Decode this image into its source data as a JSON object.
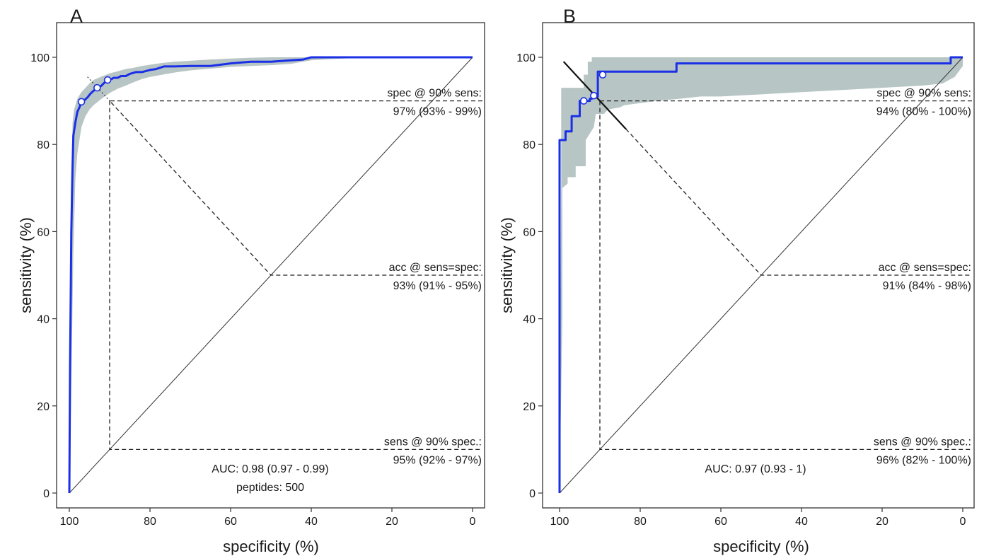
{
  "chart_data": [
    {
      "panel": "A",
      "type": "line",
      "xlabel": "specificity (%)",
      "ylabel": "sensitivity (%)",
      "xlim": [
        100,
        0
      ],
      "ylim": [
        0,
        100
      ],
      "x_reversed": true,
      "xticks": [
        "100",
        "80",
        "60",
        "40",
        "20",
        "0"
      ],
      "yticks": [
        "0",
        "20",
        "40",
        "60",
        "80",
        "100"
      ],
      "grid": false,
      "series": [
        {
          "role": "roc-curve",
          "x": [
            100,
            99.8,
            99.5,
            99.2,
            99,
            98.5,
            98,
            97.5,
            97,
            96.2,
            95.5,
            94.8,
            94,
            93.2,
            92.5,
            92,
            91.5,
            91,
            90.5,
            90,
            89.5,
            89,
            88,
            87.2,
            86,
            85,
            83.5,
            82,
            80,
            78.5,
            76.5,
            74,
            70,
            65,
            60,
            55,
            50,
            45,
            42,
            40,
            35,
            30,
            20,
            10,
            0
          ],
          "y": [
            0,
            30,
            60,
            75,
            82,
            85,
            87.5,
            88.5,
            89.7,
            90.2,
            90.8,
            91.6,
            92.3,
            92.9,
            93.2,
            93.5,
            94,
            94.4,
            94.7,
            95,
            95,
            95.3,
            95.3,
            95.7,
            95.7,
            96.2,
            96.6,
            96.6,
            97.1,
            97.3,
            97.9,
            97.9,
            98,
            98,
            98.6,
            99,
            99,
            99.3,
            99.5,
            100,
            100,
            100,
            100,
            100,
            100
          ]
        },
        {
          "role": "ci-upper",
          "x": [
            100,
            99.6,
            99.2,
            98.8,
            98,
            97,
            96,
            95,
            94,
            92,
            90,
            88,
            86,
            84,
            82,
            80,
            77,
            74,
            70,
            65,
            60,
            55,
            50,
            45,
            42,
            40,
            35,
            30,
            20,
            10,
            0
          ],
          "y": [
            10,
            70,
            85,
            88,
            90.5,
            92,
            93,
            94,
            94.8,
            95.6,
            96.3,
            96.8,
            97.3,
            97.6,
            98,
            98.3,
            98.7,
            99,
            99.2,
            99.5,
            99.7,
            99.9,
            100,
            100,
            100,
            100,
            100,
            100,
            100,
            100,
            100
          ]
        },
        {
          "role": "ci-lower",
          "x": [
            100,
            99.6,
            99,
            98.5,
            98,
            97,
            96,
            95,
            94,
            92,
            90,
            88,
            86,
            84,
            82,
            80,
            77,
            74,
            70,
            65,
            60,
            55,
            50,
            45,
            42,
            40,
            35,
            30,
            20,
            10,
            0
          ],
          "y": [
            0,
            20,
            55,
            72,
            78,
            84,
            86.5,
            88,
            89,
            90.5,
            91.8,
            92.8,
            93.5,
            94.3,
            95,
            95.5,
            96,
            96.5,
            97,
            97.4,
            97.8,
            98,
            98.2,
            98.5,
            99,
            99.3,
            99.6,
            99.8,
            100,
            100,
            100
          ]
        }
      ],
      "markers": [
        {
          "label": "",
          "x": 97,
          "y": 89.8
        },
        {
          "label": "",
          "x": 93.1,
          "y": 93
        },
        {
          "label": "",
          "x": 90.5,
          "y": 94.8
        }
      ],
      "threshold_line": {
        "x1": 95.5,
        "y1": 95.5,
        "x2": 89,
        "y2": 89
      },
      "annotations": {
        "spec_at_sens": {
          "line1": "spec @ 90% sens:",
          "line2": "97% (93% - 99%)",
          "x": 90,
          "y": 90
        },
        "acc_at_equal": {
          "line1": "acc @ sens=spec:",
          "line2": "93% (91% - 95%)",
          "x": 50,
          "y": 50
        },
        "sens_at_spec": {
          "line1": "sens @ 90% spec.:",
          "line2": "95% (92% - 97%)",
          "x": 90,
          "y": 10
        },
        "auc": "AUC: 0.98 (0.97 - 0.99)",
        "extra": "peptides: 500"
      },
      "colors": {
        "curve": "#1a2fe6",
        "ci_band": "#b7c5c4",
        "frame": "#333333",
        "diagonal": "#333333",
        "dashed": "#222222"
      }
    },
    {
      "panel": "B",
      "type": "line",
      "xlabel": "specificity (%)",
      "ylabel": "sensitivity (%)",
      "xlim": [
        100,
        0
      ],
      "ylim": [
        0,
        100
      ],
      "x_reversed": true,
      "xticks": [
        "100",
        "80",
        "60",
        "40",
        "20",
        "0"
      ],
      "yticks": [
        "0",
        "20",
        "40",
        "60",
        "80",
        "100"
      ],
      "grid": false,
      "series": [
        {
          "role": "roc-curve",
          "x": [
            100,
            100,
            98.5,
            98.5,
            97,
            97,
            95,
            95,
            92.5,
            92.5,
            92,
            92,
            91,
            91,
            90.5,
            90.5,
            71,
            71,
            3,
            3,
            0
          ],
          "y": [
            0,
            81,
            81,
            83,
            83,
            86.5,
            86.5,
            90,
            90,
            90.5,
            90.5,
            91,
            91,
            91,
            91,
            96.7,
            96.7,
            98.6,
            98.6,
            100,
            100
          ]
        },
        {
          "role": "ci-upper",
          "x": [
            100,
            99.6,
            99.6,
            94,
            94,
            93,
            93,
            92,
            92,
            0
          ],
          "y": [
            0,
            70,
            93,
            93,
            96,
            96,
            99,
            99,
            100,
            100
          ]
        },
        {
          "role": "ci-lower",
          "x": [
            100,
            99.3,
            99.3,
            98,
            98,
            96,
            96,
            93.5,
            93.5,
            91.5,
            91,
            89,
            88,
            85,
            84,
            80,
            76,
            70,
            65,
            60,
            50,
            40,
            30,
            20,
            10,
            5,
            2,
            0
          ],
          "y": [
            0,
            40,
            70,
            71,
            72.5,
            72.5,
            75,
            75,
            81,
            84,
            87,
            87,
            88,
            88.5,
            89,
            89.5,
            90,
            90.5,
            91,
            91,
            91.5,
            92,
            92.5,
            93,
            93.5,
            94,
            95.5,
            98
          ]
        }
      ],
      "markers": [
        {
          "label": "",
          "x": 94,
          "y": 90
        },
        {
          "label": "",
          "x": 91.5,
          "y": 91.2
        },
        {
          "label": "",
          "x": 89.3,
          "y": 96
        }
      ],
      "threshold_line": {
        "x1": 99,
        "y1": 99,
        "x2": 83.5,
        "y2": 83.5
      },
      "annotations": {
        "spec_at_sens": {
          "line1": "spec @ 90% sens:",
          "line2": "94% (80% - 100%)",
          "x": 90,
          "y": 90
        },
        "acc_at_equal": {
          "line1": "acc @ sens=spec:",
          "line2": "91% (84% - 98%)",
          "x": 50,
          "y": 50
        },
        "sens_at_spec": {
          "line1": "sens @ 90% spec.:",
          "line2": "96% (82% - 100%)",
          "x": 90,
          "y": 10
        },
        "auc": "AUC: 0.97 (0.93 - 1)",
        "extra": ""
      },
      "colors": {
        "curve": "#1a2fe6",
        "ci_band": "#b7c5c4",
        "frame": "#333333",
        "diagonal": "#333333",
        "dashed": "#222222"
      }
    }
  ]
}
